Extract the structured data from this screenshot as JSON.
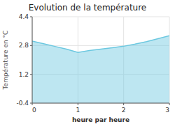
{
  "chart_data": {
    "type": "area",
    "title": "Evolution de la température",
    "xlabel": "heure par heure",
    "ylabel": "Température en °C",
    "x": [
      0,
      0.25,
      0.5,
      0.75,
      1.0,
      1.25,
      1.5,
      1.75,
      2.0,
      2.25,
      2.5,
      2.75,
      3.0
    ],
    "values": [
      3.05,
      2.9,
      2.75,
      2.6,
      2.42,
      2.52,
      2.6,
      2.68,
      2.76,
      2.88,
      3.02,
      3.18,
      3.35
    ],
    "color": "#6cc8e0",
    "xlim": [
      0,
      3
    ],
    "ylim": [
      -0.4,
      4.4
    ],
    "xticks": [
      0,
      1,
      2,
      3
    ],
    "yticks": [
      -0.4,
      1.2,
      2.8,
      4.4
    ],
    "grid": true
  }
}
